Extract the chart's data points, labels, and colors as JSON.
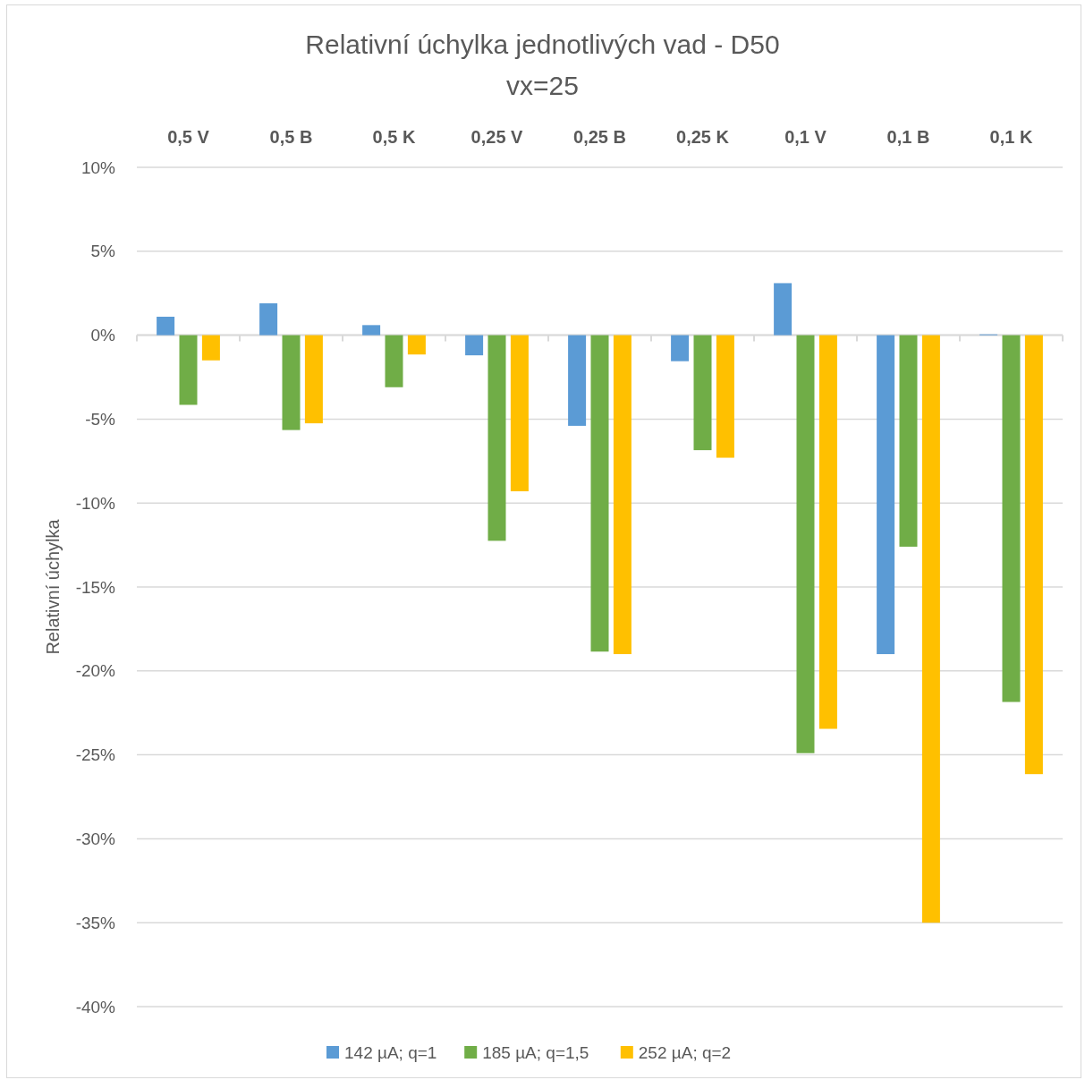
{
  "chart_data": {
    "type": "bar",
    "title": "Relativní úchylka jednotlivých vad - D50",
    "subtitle": "vx=25",
    "ylabel": "Relativní úchylka",
    "categories": [
      "0,5 V",
      "0,5 B",
      "0,5 K",
      "0,25 V",
      "0,25 B",
      "0,25 K",
      "0,1 V",
      "0,1 B",
      "0,1 K"
    ],
    "series": [
      {
        "name": "142 µA; q=1",
        "color": "#5b9bd5",
        "values": [
          1.1,
          1.9,
          0.6,
          -1.2,
          -5.4,
          -1.55,
          3.1,
          -19.0,
          0.05
        ]
      },
      {
        "name": "185 µA; q=1,5",
        "color": "#70ad47",
        "values": [
          -4.15,
          -5.65,
          -3.1,
          -12.25,
          -18.85,
          -6.85,
          -24.9,
          -12.6,
          -21.85
        ]
      },
      {
        "name": "252 µA; q=2",
        "color": "#ffc000",
        "values": [
          -1.5,
          -5.25,
          -1.15,
          -9.3,
          -19.0,
          -7.3,
          -23.45,
          -35.0,
          -26.15
        ]
      }
    ],
    "ylim": [
      -40,
      10
    ],
    "yticks": [
      {
        "value": 10,
        "label": "10%"
      },
      {
        "value": 5,
        "label": "5%"
      },
      {
        "value": 0,
        "label": "0%"
      },
      {
        "value": -5,
        "label": "-5%"
      },
      {
        "value": -10,
        "label": "-10%"
      },
      {
        "value": -15,
        "label": "-15%"
      },
      {
        "value": -20,
        "label": "-20%"
      },
      {
        "value": -25,
        "label": "-25%"
      },
      {
        "value": -30,
        "label": "-30%"
      },
      {
        "value": -35,
        "label": "-35%"
      },
      {
        "value": -40,
        "label": "-40%"
      }
    ],
    "grid": "y",
    "legend": "bottom"
  }
}
